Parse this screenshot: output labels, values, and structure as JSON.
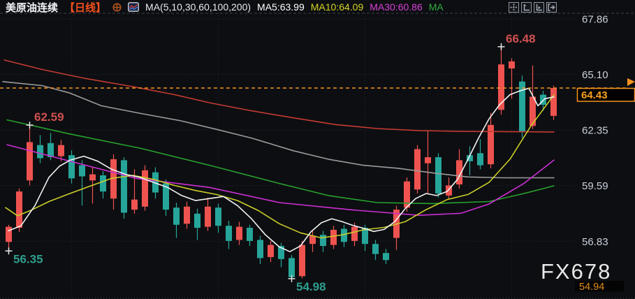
{
  "header": {
    "symbol": "美原油连续",
    "period": "【日线】",
    "period_color": "#f4511e",
    "ma_settings": "MA(5,10,30,60,100,200)",
    "ma_values": [
      {
        "label": "MA5:63.99",
        "color": "#ffffff"
      },
      {
        "label": "MA10:64.09",
        "color": "#d4d523"
      },
      {
        "label": "MA30:60.86",
        "color": "#d940d9"
      },
      {
        "label": "MA",
        "color": "#2fae41"
      }
    ]
  },
  "toolbar": {
    "buttons": [
      {
        "name": "crosshair-move-tool"
      },
      {
        "name": "axis-scale-left-tool"
      },
      {
        "name": "axis-scale-right-tool"
      },
      {
        "name": "pop-out-tool"
      }
    ]
  },
  "watermark": "FX678",
  "axis": {
    "ticks": [
      "67.86",
      "65.10",
      "62.35",
      "59.59",
      "56.83"
    ],
    "tick_color": "#c9d0db",
    "last_price": "64.43",
    "last_price_color": "#f7a01e",
    "low_badge": "54.94",
    "low_badge_color": "#df8a1a"
  },
  "chart_data": {
    "type": "candlestick",
    "title": "美原油连续 (US Crude Oil Continuous) — 日线 Daily",
    "convention": "red = up, green = down (Chinese market convention)",
    "colors": {
      "up": "#ef5350",
      "down": "#26a69a",
      "last_price_line": "#f7931e",
      "grid": "#2d3037",
      "swing_high_label": "#d05050",
      "swing_low_label": "#2f9e8f"
    },
    "y_axis": {
      "ticks": [
        67.86,
        65.1,
        62.35,
        59.59,
        56.83
      ],
      "visible_low": 54.94,
      "last_price": 64.43
    },
    "x_gridline_candles": [
      6,
      20,
      34,
      48
    ],
    "candles_ohlc": [
      [
        56.8,
        57.65,
        56.35,
        57.55
      ],
      [
        57.5,
        59.45,
        57.3,
        59.3
      ],
      [
        59.85,
        62.59,
        59.6,
        61.75
      ],
      [
        61.6,
        62.1,
        60.7,
        60.95
      ],
      [
        61.7,
        62.2,
        60.85,
        61.0
      ],
      [
        61.05,
        61.85,
        60.8,
        61.6
      ],
      [
        61.1,
        61.35,
        59.7,
        59.95
      ],
      [
        60.6,
        60.85,
        58.6,
        60.05
      ],
      [
        59.85,
        60.5,
        58.7,
        60.15
      ],
      [
        60.1,
        60.3,
        58.95,
        59.3
      ],
      [
        58.95,
        61.15,
        58.4,
        60.9
      ],
      [
        60.85,
        61.0,
        57.95,
        58.25
      ],
      [
        58.4,
        60.4,
        58.2,
        58.9
      ],
      [
        58.55,
        60.6,
        58.35,
        60.35
      ],
      [
        60.25,
        60.5,
        58.95,
        59.25
      ],
      [
        59.7,
        59.9,
        58.1,
        58.4
      ],
      [
        58.5,
        58.75,
        57.0,
        57.65
      ],
      [
        57.7,
        58.8,
        57.45,
        58.55
      ],
      [
        58.2,
        58.45,
        56.9,
        57.5
      ],
      [
        57.55,
        59.0,
        57.35,
        58.55
      ],
      [
        58.5,
        58.7,
        57.25,
        57.6
      ],
      [
        57.6,
        57.85,
        56.45,
        56.85
      ],
      [
        56.9,
        57.8,
        56.65,
        57.55
      ],
      [
        57.5,
        57.65,
        56.6,
        56.85
      ],
      [
        56.9,
        57.1,
        55.7,
        56.0
      ],
      [
        56.05,
        56.85,
        55.8,
        56.65
      ],
      [
        56.6,
        56.75,
        55.55,
        55.95
      ],
      [
        56.0,
        56.15,
        54.98,
        55.05
      ],
      [
        55.1,
        56.85,
        55.0,
        56.65
      ],
      [
        56.7,
        57.4,
        56.3,
        57.1
      ],
      [
        57.15,
        57.35,
        56.3,
        56.6
      ],
      [
        56.65,
        57.6,
        56.45,
        57.4
      ],
      [
        57.45,
        57.65,
        56.55,
        56.8
      ],
      [
        56.85,
        57.75,
        56.6,
        57.55
      ],
      [
        57.5,
        57.65,
        56.35,
        56.7
      ],
      [
        56.7,
        56.9,
        55.9,
        56.2
      ],
      [
        56.25,
        56.45,
        55.7,
        55.9
      ],
      [
        57.0,
        58.6,
        56.4,
        58.4
      ],
      [
        58.5,
        60.0,
        58.3,
        59.8
      ],
      [
        59.4,
        61.6,
        59.2,
        61.4
      ],
      [
        60.7,
        62.3,
        59.2,
        61.0
      ],
      [
        61.0,
        61.2,
        59.0,
        59.2
      ],
      [
        59.1,
        60.0,
        58.9,
        59.6
      ],
      [
        59.65,
        61.4,
        59.45,
        60.85
      ],
      [
        61.1,
        61.55,
        60.1,
        60.8
      ],
      [
        61.2,
        61.9,
        60.4,
        60.6
      ],
      [
        60.65,
        63.2,
        60.45,
        62.6
      ],
      [
        63.35,
        66.48,
        63.1,
        65.6
      ],
      [
        65.4,
        65.9,
        63.9,
        65.75
      ],
      [
        64.75,
        65.05,
        61.95,
        62.25
      ],
      [
        62.55,
        65.55,
        62.4,
        64.0
      ],
      [
        64.1,
        64.3,
        63.3,
        63.6
      ],
      [
        63.05,
        64.55,
        62.85,
        64.43
      ]
    ],
    "annotations": [
      {
        "candle": 2,
        "price": 62.59,
        "label": "62.59",
        "kind": "swing_high"
      },
      {
        "candle": 47,
        "price": 66.48,
        "label": "66.48",
        "kind": "swing_high"
      },
      {
        "candle": 0,
        "price": 56.35,
        "label": "56.35",
        "kind": "swing_low"
      },
      {
        "candle": 27,
        "price": 54.98,
        "label": "54.98",
        "kind": "swing_low"
      }
    ],
    "moving_averages": [
      {
        "name": "MA200",
        "color": "#c53b33",
        "points": [
          [
            6,
            65.82
          ],
          [
            60,
            65.35
          ],
          [
            120,
            64.92
          ],
          [
            190,
            64.5
          ],
          [
            250,
            64.1
          ],
          [
            300,
            63.7
          ],
          [
            360,
            63.3
          ],
          [
            420,
            62.95
          ],
          [
            480,
            62.62
          ],
          [
            540,
            62.42
          ],
          [
            600,
            62.32
          ],
          [
            660,
            62.28
          ],
          [
            720,
            62.27
          ],
          [
            793,
            62.25
          ]
        ]
      },
      {
        "name": "MA100",
        "color": "#9b9b9b",
        "points": [
          [
            4,
            64.75
          ],
          [
            60,
            64.55
          ],
          [
            100,
            64.18
          ],
          [
            145,
            63.55
          ],
          [
            200,
            63.18
          ],
          [
            257,
            62.82
          ],
          [
            310,
            62.38
          ],
          [
            360,
            61.95
          ],
          [
            420,
            61.32
          ],
          [
            470,
            60.9
          ],
          [
            520,
            60.6
          ],
          [
            570,
            60.45
          ],
          [
            620,
            60.22
          ],
          [
            670,
            60.02
          ],
          [
            720,
            59.98
          ],
          [
            793,
            59.98
          ]
        ]
      },
      {
        "name": "MA60",
        "color": "#27a22e",
        "points": [
          [
            10,
            62.85
          ],
          [
            100,
            62.15
          ],
          [
            200,
            61.45
          ],
          [
            300,
            60.6
          ],
          [
            400,
            59.7
          ],
          [
            470,
            59.1
          ],
          [
            540,
            58.75
          ],
          [
            620,
            58.7
          ],
          [
            700,
            58.8
          ],
          [
            750,
            59.2
          ],
          [
            793,
            59.58
          ]
        ]
      },
      {
        "name": "MA30",
        "color": "#cc2fd4",
        "points": [
          [
            10,
            61.62
          ],
          [
            95,
            60.85
          ],
          [
            195,
            59.95
          ],
          [
            300,
            59.5
          ],
          [
            400,
            58.75
          ],
          [
            500,
            58.4
          ],
          [
            600,
            58.12
          ],
          [
            660,
            58.22
          ],
          [
            700,
            58.68
          ],
          [
            750,
            59.7
          ],
          [
            793,
            60.86
          ]
        ]
      },
      {
        "name": "MA10",
        "color": "#c9cd2a",
        "points": [
          [
            8,
            58.5
          ],
          [
            25,
            58.1
          ],
          [
            45,
            58.38
          ],
          [
            70,
            58.8
          ],
          [
            100,
            59.2
          ],
          [
            130,
            59.58
          ],
          [
            160,
            59.95
          ],
          [
            190,
            60.1
          ],
          [
            220,
            59.9
          ],
          [
            250,
            59.6
          ],
          [
            280,
            59.35
          ],
          [
            310,
            59.15
          ],
          [
            340,
            58.85
          ],
          [
            370,
            58.35
          ],
          [
            400,
            57.7
          ],
          [
            430,
            57.25
          ],
          [
            460,
            57.0
          ],
          [
            490,
            57.15
          ],
          [
            520,
            57.4
          ],
          [
            550,
            57.52
          ],
          [
            580,
            57.8
          ],
          [
            610,
            58.4
          ],
          [
            640,
            58.9
          ],
          [
            670,
            59.15
          ],
          [
            700,
            59.75
          ],
          [
            730,
            60.9
          ],
          [
            760,
            62.55
          ],
          [
            793,
            64.09
          ]
        ]
      },
      {
        "name": "MA5",
        "color": "#f2f2f2",
        "points": [
          [
            12,
            57.35
          ],
          [
            30,
            57.6
          ],
          [
            50,
            58.6
          ],
          [
            70,
            60.0
          ],
          [
            85,
            60.55
          ],
          [
            100,
            60.85
          ],
          [
            120,
            61.05
          ],
          [
            140,
            60.8
          ],
          [
            160,
            60.4
          ],
          [
            180,
            60.15
          ],
          [
            200,
            60.0
          ],
          [
            220,
            59.75
          ],
          [
            240,
            59.5
          ],
          [
            260,
            59.1
          ],
          [
            280,
            58.85
          ],
          [
            300,
            58.95
          ],
          [
            320,
            59.05
          ],
          [
            340,
            58.6
          ],
          [
            360,
            57.95
          ],
          [
            380,
            57.15
          ],
          [
            400,
            56.55
          ],
          [
            415,
            56.32
          ],
          [
            430,
            56.6
          ],
          [
            445,
            57.3
          ],
          [
            460,
            57.75
          ],
          [
            475,
            57.95
          ],
          [
            490,
            57.8
          ],
          [
            505,
            57.62
          ],
          [
            520,
            57.48
          ],
          [
            535,
            57.32
          ],
          [
            550,
            57.42
          ],
          [
            565,
            57.8
          ],
          [
            580,
            58.45
          ],
          [
            595,
            58.95
          ],
          [
            610,
            59.2
          ],
          [
            625,
            59.1
          ],
          [
            640,
            59.3
          ],
          [
            655,
            59.9
          ],
          [
            670,
            60.9
          ],
          [
            685,
            61.95
          ],
          [
            700,
            62.9
          ],
          [
            715,
            63.6
          ],
          [
            730,
            64.1
          ],
          [
            745,
            64.3
          ],
          [
            757,
            64.42
          ],
          [
            770,
            63.55
          ],
          [
            780,
            63.9
          ],
          [
            793,
            63.99
          ]
        ]
      }
    ]
  }
}
